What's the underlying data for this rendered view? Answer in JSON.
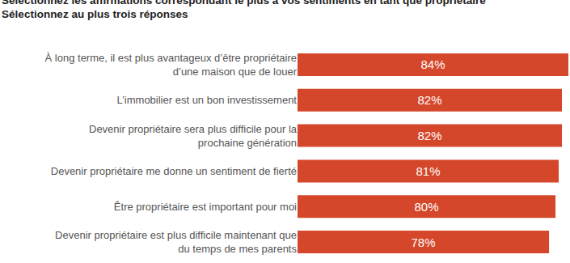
{
  "chart_data": {
    "type": "bar",
    "orientation": "horizontal",
    "title": "Sélectionnez les affirmations correspondant le plus à vos sentiments en tant que propriétaire",
    "subtitle": "Sélectionnez au plus trois réponses",
    "categories": [
      "À long terme, il est plus avantageux d’être propriétaire d’une maison que de louer",
      "L’immobilier est un bon investissement",
      "Devenir propriétaire sera plus difficile pour la prochaine génération",
      "Devenir propriétaire me donne un sentiment de fierté",
      "Être propriétaire est important pour moi",
      "Devenir propriétaire est plus difficile maintenant que du temps de mes parents"
    ],
    "values": [
      84,
      82,
      82,
      81,
      80,
      78
    ],
    "value_labels": [
      "84%",
      "82%",
      "82%",
      "81%",
      "80%",
      "78%"
    ],
    "data_labels": true,
    "color": "#d5472a",
    "xlim": [
      0,
      84
    ],
    "tick_labels": "y",
    "grid": false
  }
}
